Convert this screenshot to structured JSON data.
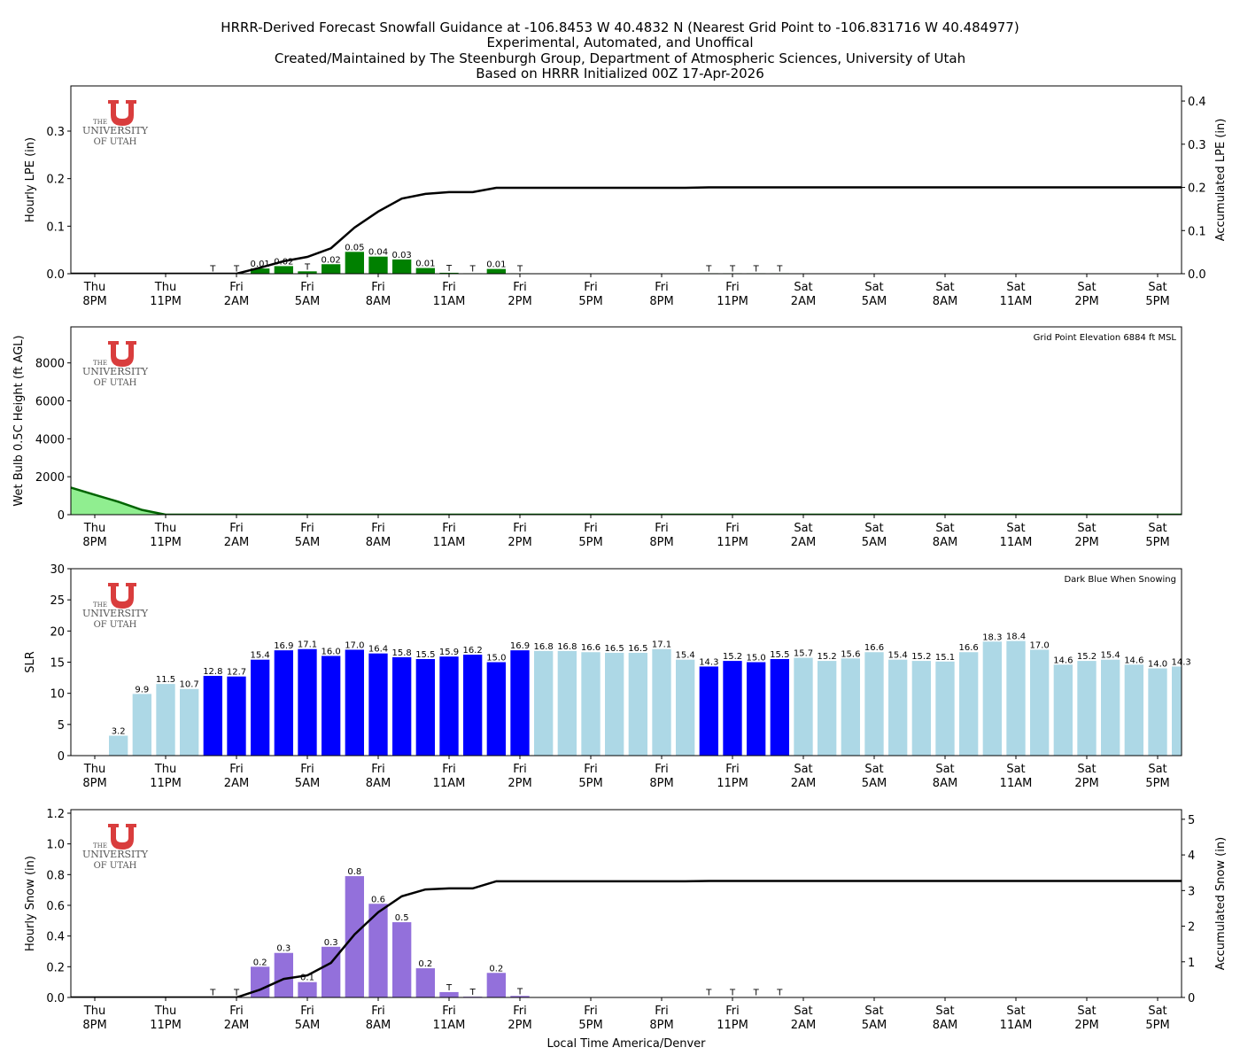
{
  "title_lines": [
    "HRRR-Derived Forecast Snowfall Guidance at -106.8453 W 40.4832 N (Nearest Grid Point to -106.831716 W 40.484977)",
    "Experimental, Automated, and Unoffical",
    "Created/Maintained by The Steenburgh Group, Department of Atmospheric Sciences, University of Utah",
    "Based on HRRR Initialized 00Z 17-Apr-2026"
  ],
  "logo_text": [
    "THE",
    "UNIVERSITY",
    "OF UTAH"
  ],
  "xlabel": "Local Time America/Denver",
  "hours": [
    "Thu 8PM",
    "Thu 9PM",
    "Thu 10PM",
    "Thu 11PM",
    "Fri 12AM",
    "Fri 1AM",
    "Fri 2AM",
    "Fri 3AM",
    "Fri 4AM",
    "Fri 5AM",
    "Fri 6AM",
    "Fri 7AM",
    "Fri 8AM",
    "Fri 9AM",
    "Fri 10AM",
    "Fri 11AM",
    "Fri 12PM",
    "Fri 1PM",
    "Fri 2PM",
    "Fri 3PM",
    "Fri 4PM",
    "Fri 5PM",
    "Fri 6PM",
    "Fri 7PM",
    "Fri 8PM",
    "Fri 9PM",
    "Fri 10PM",
    "Fri 11PM",
    "Sat 12AM",
    "Sat 1AM",
    "Sat 2AM",
    "Sat 3AM",
    "Sat 4AM",
    "Sat 5AM",
    "Sat 6AM",
    "Sat 7AM",
    "Sat 8AM",
    "Sat 9AM",
    "Sat 10AM",
    "Sat 11AM",
    "Sat 12PM",
    "Sat 1PM",
    "Sat 2PM",
    "Sat 3PM",
    "Sat 4PM",
    "Sat 5PM",
    "Sat 6PM"
  ],
  "x_ticks": [
    {
      "day": "Thu",
      "time": "8PM"
    },
    {
      "day": "Thu",
      "time": "11PM"
    },
    {
      "day": "Fri",
      "time": "2AM"
    },
    {
      "day": "Fri",
      "time": "5AM"
    },
    {
      "day": "Fri",
      "time": "8AM"
    },
    {
      "day": "Fri",
      "time": "11AM"
    },
    {
      "day": "Fri",
      "time": "2PM"
    },
    {
      "day": "Fri",
      "time": "5PM"
    },
    {
      "day": "Fri",
      "time": "8PM"
    },
    {
      "day": "Fri",
      "time": "11PM"
    },
    {
      "day": "Sat",
      "time": "2AM"
    },
    {
      "day": "Sat",
      "time": "5AM"
    },
    {
      "day": "Sat",
      "time": "8AM"
    },
    {
      "day": "Sat",
      "time": "11AM"
    },
    {
      "day": "Sat",
      "time": "2PM"
    },
    {
      "day": "Sat",
      "time": "5PM"
    }
  ],
  "chart_data": [
    {
      "type": "bar",
      "ylabel": "Hourly LPE (in)",
      "ylabel_right": "Accumulated LPE (in)",
      "ylim": [
        0,
        0.395
      ],
      "yticks": [
        0.0,
        0.1,
        0.2,
        0.3
      ],
      "ylim_right": [
        0,
        0.435
      ],
      "yticks_right": [
        0.0,
        0.1,
        0.2,
        0.3,
        0.4
      ],
      "bar_color": "#008000",
      "values": [
        0,
        0,
        0,
        0,
        0,
        0.001,
        0.001,
        0.011,
        0.016,
        0.005,
        0.02,
        0.046,
        0.036,
        0.03,
        0.012,
        0.002,
        0.001,
        0.01,
        0.001,
        0,
        0,
        0,
        0,
        0,
        0,
        0,
        0.001,
        0.001,
        0.001,
        0.001,
        0,
        0,
        0,
        0,
        0,
        0,
        0,
        0,
        0,
        0,
        0,
        0,
        0,
        0,
        0,
        0,
        0
      ],
      "labels": [
        "",
        "",
        "",
        "",
        "",
        "T",
        "T",
        "0.01",
        "0.02",
        "T",
        "0.02",
        "0.05",
        "0.04",
        "0.03",
        "0.01",
        "T",
        "T",
        "0.01",
        "T",
        "",
        "",
        "",
        "",
        "",
        "",
        "",
        "T",
        "T",
        "T",
        "T",
        "",
        "",
        "",
        "",
        "",
        "",
        "",
        "",
        "",
        "",
        "",
        "",
        "",
        "",
        "",
        "",
        ""
      ],
      "accumulated": [
        0,
        0,
        0,
        0,
        0,
        0,
        0,
        0.014,
        0.029,
        0.039,
        0.059,
        0.107,
        0.144,
        0.174,
        0.185,
        0.189,
        0.189,
        0.199,
        0.199,
        0.199,
        0.199,
        0.199,
        0.199,
        0.199,
        0.199,
        0.199,
        0.2,
        0.2,
        0.2,
        0.2,
        0.2,
        0.2,
        0.2,
        0.2,
        0.2,
        0.2,
        0.2,
        0.2,
        0.2,
        0.2,
        0.2,
        0.2,
        0.2,
        0.2,
        0.2,
        0.2,
        0.2
      ]
    },
    {
      "type": "area",
      "ylabel": "Wet Bulb 0.5C Height (ft AGL)",
      "annotation": "Grid Point Elevation 6884 ft MSL",
      "ylim": [
        0,
        9900
      ],
      "yticks": [
        0,
        2000,
        4000,
        6000,
        8000
      ],
      "fill_color": "#90ee90",
      "line_color": "#006400",
      "values": [
        1050,
        680,
        250,
        0,
        0,
        0,
        0,
        0,
        0,
        0,
        0,
        0,
        0,
        0,
        0,
        0,
        0,
        0,
        0,
        0,
        0,
        0,
        0,
        0,
        0,
        0,
        0,
        0,
        0,
        0,
        0,
        0,
        0,
        0,
        0,
        0,
        0,
        0,
        0,
        0,
        0,
        0,
        0,
        0,
        0,
        0,
        0
      ]
    },
    {
      "type": "bar",
      "ylabel": "SLR",
      "annotation": "Dark Blue When Snowing",
      "ylim": [
        0,
        30
      ],
      "yticks": [
        0,
        5,
        10,
        15,
        20,
        25,
        30
      ],
      "snowing_color": "#0000ff",
      "not_snowing_color": "#add8e6",
      "values": [
        null,
        3.2,
        9.9,
        11.5,
        10.7,
        12.8,
        12.7,
        15.4,
        16.9,
        17.1,
        16.0,
        17.0,
        16.4,
        15.8,
        15.5,
        15.9,
        16.2,
        15.0,
        16.9,
        16.8,
        16.8,
        16.6,
        16.5,
        16.5,
        17.1,
        15.4,
        14.3,
        15.2,
        15.0,
        15.5,
        15.7,
        15.2,
        15.6,
        16.6,
        15.4,
        15.2,
        15.1,
        16.6,
        18.3,
        18.4,
        17.0,
        14.6,
        15.2,
        15.4,
        14.6,
        14.0,
        14.3
      ],
      "snowing": [
        false,
        false,
        false,
        false,
        false,
        true,
        true,
        true,
        true,
        true,
        true,
        true,
        true,
        true,
        true,
        true,
        true,
        true,
        true,
        false,
        false,
        false,
        false,
        false,
        false,
        false,
        true,
        true,
        true,
        true,
        false,
        false,
        false,
        false,
        false,
        false,
        false,
        false,
        false,
        false,
        false,
        false,
        false,
        false,
        false,
        false,
        false
      ]
    },
    {
      "type": "bar",
      "ylabel": "Hourly Snow (in)",
      "ylabel_right": "Accumulated Snow (in)",
      "ylim": [
        0,
        1.223
      ],
      "yticks": [
        0.0,
        0.2,
        0.4,
        0.6,
        0.8,
        1.0,
        1.2
      ],
      "ylim_right": [
        0,
        5.27
      ],
      "yticks_right": [
        0,
        1,
        2,
        3,
        4,
        5
      ],
      "bar_color": "#9370db",
      "values": [
        0,
        0,
        0,
        0,
        0,
        0.002,
        0.003,
        0.2,
        0.29,
        0.1,
        0.33,
        0.79,
        0.61,
        0.49,
        0.19,
        0.035,
        0.005,
        0.16,
        0.01,
        0,
        0,
        0,
        0,
        0,
        0,
        0,
        0.002,
        0.002,
        0.002,
        0.002,
        0,
        0,
        0,
        0,
        0,
        0,
        0,
        0,
        0,
        0,
        0,
        0,
        0,
        0,
        0,
        0,
        0
      ],
      "labels": [
        "",
        "",
        "",
        "",
        "",
        "T",
        "T",
        "0.2",
        "0.3",
        "0.1",
        "0.3",
        "0.8",
        "0.6",
        "0.5",
        "0.2",
        "T",
        "T",
        "0.2",
        "T",
        "",
        "",
        "",
        "",
        "",
        "",
        "",
        "T",
        "T",
        "T",
        "T",
        "",
        "",
        "",
        "",
        "",
        "",
        "",
        "",
        "",
        "",
        "",
        "",
        "",
        "",
        "",
        "",
        ""
      ],
      "accumulated": [
        0,
        0,
        0,
        0,
        0,
        0,
        0,
        0.22,
        0.52,
        0.62,
        0.97,
        1.77,
        2.39,
        2.84,
        3.03,
        3.06,
        3.06,
        3.26,
        3.26,
        3.26,
        3.26,
        3.26,
        3.26,
        3.26,
        3.26,
        3.26,
        3.27,
        3.27,
        3.27,
        3.27,
        3.27,
        3.27,
        3.27,
        3.27,
        3.27,
        3.27,
        3.27,
        3.27,
        3.27,
        3.27,
        3.27,
        3.27,
        3.27,
        3.27,
        3.27,
        3.27,
        3.27
      ]
    }
  ]
}
